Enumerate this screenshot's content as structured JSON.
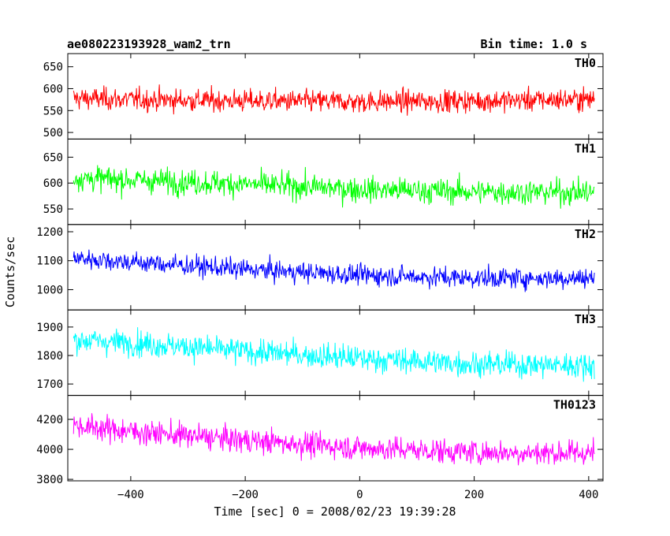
{
  "header": {
    "title": "ae080223193928_wam2_trn",
    "bin_time": "Bin time: 1.0 s"
  },
  "chart_data": {
    "type": "line",
    "xlabel": "Time [sec] 0 = 2008/02/23 19:39:28",
    "ylabel": "Counts/sec",
    "xlim": [
      -510,
      425
    ],
    "x_range_data": [
      -500,
      410
    ],
    "x_ticks": [
      -400,
      -200,
      0,
      200,
      400
    ],
    "x_ticklabels": [
      "−400",
      "−200",
      "0",
      "200",
      "400"
    ],
    "panels": [
      {
        "name": "TH0",
        "color": "#ff0000",
        "ylim": [
          485,
          680
        ],
        "y_ticks": [
          500,
          550,
          600,
          650
        ],
        "y_ticklabels": [
          "500",
          "550",
          "600",
          "650"
        ],
        "trend": [
          [
            -500,
            578
          ],
          [
            -400,
            575
          ],
          [
            -200,
            572
          ],
          [
            0,
            570
          ],
          [
            200,
            572
          ],
          [
            410,
            576
          ]
        ],
        "noise": 40
      },
      {
        "name": "TH1",
        "color": "#00ff00",
        "ylim": [
          520,
          685
        ],
        "y_ticks": [
          550,
          600,
          650
        ],
        "y_ticklabels": [
          "550",
          "600",
          "650"
        ],
        "trend": [
          [
            -500,
            610
          ],
          [
            -400,
            606
          ],
          [
            -200,
            598
          ],
          [
            0,
            588
          ],
          [
            200,
            583
          ],
          [
            410,
            582
          ]
        ],
        "noise": 38
      },
      {
        "name": "TH2",
        "color": "#0000ff",
        "ylim": [
          930,
          1225
        ],
        "y_ticks": [
          1000,
          1100,
          1200
        ],
        "y_ticklabels": [
          "1000",
          "1100",
          "1200"
        ],
        "trend": [
          [
            -500,
            1110
          ],
          [
            -400,
            1095
          ],
          [
            -200,
            1070
          ],
          [
            0,
            1050
          ],
          [
            200,
            1040
          ],
          [
            410,
            1040
          ]
        ],
        "noise": 55
      },
      {
        "name": "TH3",
        "color": "#00ffff",
        "ylim": [
          1660,
          1960
        ],
        "y_ticks": [
          1700,
          1800,
          1900
        ],
        "y_ticklabels": [
          "1700",
          "1800",
          "1900"
        ],
        "trend": [
          [
            -500,
            1855
          ],
          [
            -400,
            1845
          ],
          [
            -200,
            1815
          ],
          [
            0,
            1790
          ],
          [
            200,
            1770
          ],
          [
            410,
            1765
          ]
        ],
        "noise": 70
      },
      {
        "name": "TH0123",
        "color": "#ff00ff",
        "ylim": [
          3790,
          4360
        ],
        "y_ticks": [
          3800,
          4000,
          4200
        ],
        "y_ticklabels": [
          "3800",
          "4000",
          "4200"
        ],
        "trend": [
          [
            -500,
            4160
          ],
          [
            -400,
            4120
          ],
          [
            -200,
            4060
          ],
          [
            0,
            4010
          ],
          [
            200,
            3980
          ],
          [
            410,
            3975
          ]
        ],
        "noise": 130
      }
    ]
  }
}
